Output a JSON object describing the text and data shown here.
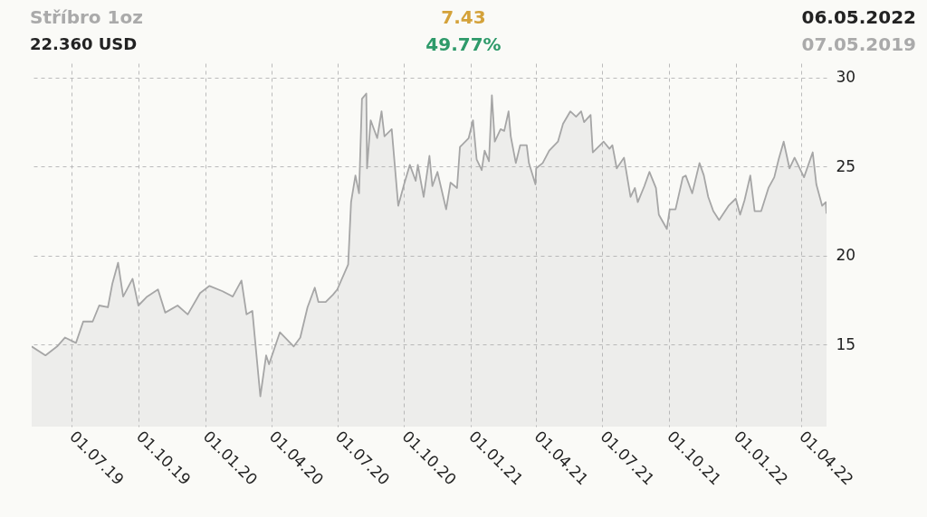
{
  "chart_data": {
    "type": "area",
    "title": "Stříbro 1oz",
    "subtitle": "22.360 USD",
    "annotations": [
      "7.43",
      "49.77%",
      "06.05.2022",
      "07.05.2019"
    ],
    "x": [
      "2019-05-07",
      "2019-05-26",
      "2019-06-11",
      "2019-06-22",
      "2019-07-07",
      "2019-07-17",
      "2019-07-30",
      "2019-08-08",
      "2019-08-20",
      "2019-08-26",
      "2019-09-03",
      "2019-09-10",
      "2019-09-23",
      "2019-10-01",
      "2019-10-13",
      "2019-10-28",
      "2019-11-07",
      "2019-11-24",
      "2019-12-08",
      "2019-12-25",
      "2020-01-07",
      "2020-01-25",
      "2020-02-08",
      "2020-02-20",
      "2020-02-27",
      "2020-03-06",
      "2020-03-17",
      "2020-03-25",
      "2020-03-29",
      "2020-04-13",
      "2020-05-02",
      "2020-05-11",
      "2020-05-21",
      "2020-05-31",
      "2020-06-05",
      "2020-06-15",
      "2020-06-25",
      "2020-07-01",
      "2020-07-16",
      "2020-07-20",
      "2020-07-26",
      "2020-07-31",
      "2020-08-04",
      "2020-08-10",
      "2020-08-11",
      "2020-08-16",
      "2020-08-25",
      "2020-08-31",
      "2020-09-04",
      "2020-09-14",
      "2020-09-23",
      "2020-10-01",
      "2020-10-09",
      "2020-10-17",
      "2020-10-20",
      "2020-10-28",
      "2020-11-05",
      "2020-11-09",
      "2020-11-16",
      "2020-11-28",
      "2020-12-04",
      "2020-12-13",
      "2020-12-17",
      "2020-12-29",
      "2021-01-04",
      "2021-01-09",
      "2021-01-16",
      "2021-01-20",
      "2021-01-26",
      "2021-01-30",
      "2021-02-03",
      "2021-02-11",
      "2021-02-16",
      "2021-02-22",
      "2021-02-25",
      "2021-03-04",
      "2021-03-10",
      "2021-03-19",
      "2021-03-22",
      "2021-03-31",
      "2021-04-01",
      "2021-04-10",
      "2021-04-19",
      "2021-05-01",
      "2021-05-08",
      "2021-05-18",
      "2021-05-26",
      "2021-06-02",
      "2021-06-06",
      "2021-06-15",
      "2021-06-18",
      "2021-07-03",
      "2021-07-11",
      "2021-07-15",
      "2021-07-21",
      "2021-07-31",
      "2021-08-09",
      "2021-08-15",
      "2021-08-19",
      "2021-08-28",
      "2021-09-04",
      "2021-09-13",
      "2021-09-17",
      "2021-09-28",
      "2021-10-02",
      "2021-10-10",
      "2021-10-20",
      "2021-10-24",
      "2021-11-02",
      "2021-11-12",
      "2021-11-18",
      "2021-11-24",
      "2021-12-01",
      "2021-12-09",
      "2021-12-22",
      "2022-01-01",
      "2022-01-07",
      "2022-01-13",
      "2022-01-21",
      "2022-01-27",
      "2022-02-05",
      "2022-02-15",
      "2022-02-23",
      "2022-03-01",
      "2022-03-08",
      "2022-03-16",
      "2022-03-23",
      "2022-04-05",
      "2022-04-17",
      "2022-04-22",
      "2022-04-30",
      "2022-05-05",
      "2022-05-06"
    ],
    "series": [
      {
        "color": "#a6a6a6",
        "values": [
          14.9,
          14.4,
          14.9,
          15.4,
          15.1,
          16.3,
          16.3,
          17.2,
          17.1,
          18.4,
          19.6,
          17.7,
          18.7,
          17.2,
          17.7,
          18.1,
          16.8,
          17.2,
          16.7,
          17.9,
          18.3,
          18.0,
          17.7,
          18.6,
          16.7,
          16.9,
          12.1,
          14.4,
          13.9,
          15.7,
          14.9,
          15.4,
          17.1,
          18.2,
          17.4,
          17.4,
          17.8,
          18.1,
          19.5,
          23.0,
          24.5,
          23.5,
          28.8,
          29.1,
          24.9,
          27.6,
          26.6,
          28.1,
          26.7,
          27.1,
          22.8,
          24.0,
          25.1,
          24.2,
          25.1,
          23.3,
          25.6,
          23.9,
          24.7,
          22.6,
          24.1,
          23.8,
          26.1,
          26.6,
          27.6,
          25.4,
          24.8,
          25.9,
          25.3,
          29.0,
          26.4,
          27.1,
          27.0,
          28.1,
          26.7,
          25.2,
          26.2,
          26.2,
          25.2,
          24.0,
          24.9,
          25.2,
          25.9,
          26.4,
          27.4,
          28.1,
          27.8,
          28.1,
          27.5,
          27.9,
          25.8,
          26.4,
          26.0,
          26.2,
          24.9,
          25.5,
          23.3,
          23.8,
          23.0,
          23.9,
          24.7,
          23.8,
          22.3,
          21.5,
          22.6,
          22.6,
          24.4,
          24.5,
          23.5,
          25.2,
          24.5,
          23.3,
          22.5,
          22.0,
          22.8,
          23.2,
          22.3,
          23.1,
          24.5,
          22.5,
          22.5,
          23.8,
          24.4,
          25.4,
          26.4,
          24.9,
          25.5,
          24.4,
          25.8,
          24.0,
          22.8,
          23.0,
          22.36
        ]
      }
    ],
    "xlim": [
      "2019-05-07",
      "2022-05-06"
    ],
    "xticks": [
      {
        "value": "2019-07-01",
        "label": "01.07.19"
      },
      {
        "value": "2019-10-01",
        "label": "01.10.19"
      },
      {
        "value": "2020-01-01",
        "label": "01.01.20"
      },
      {
        "value": "2020-04-01",
        "label": "01.04.20"
      },
      {
        "value": "2020-07-01",
        "label": "01.07.20"
      },
      {
        "value": "2020-10-01",
        "label": "01.10.20"
      },
      {
        "value": "2021-01-01",
        "label": "01.01.21"
      },
      {
        "value": "2021-04-01",
        "label": "01.04.21"
      },
      {
        "value": "2021-07-01",
        "label": "01.07.21"
      },
      {
        "value": "2021-10-01",
        "label": "01.10.21"
      },
      {
        "value": "2022-01-01",
        "label": "01.01.22"
      },
      {
        "value": "2022-04-01",
        "label": "01.04.22"
      }
    ],
    "ylim": [
      10.4,
      30.8
    ],
    "yticks": [
      15,
      20,
      25,
      30
    ],
    "grid": true
  }
}
